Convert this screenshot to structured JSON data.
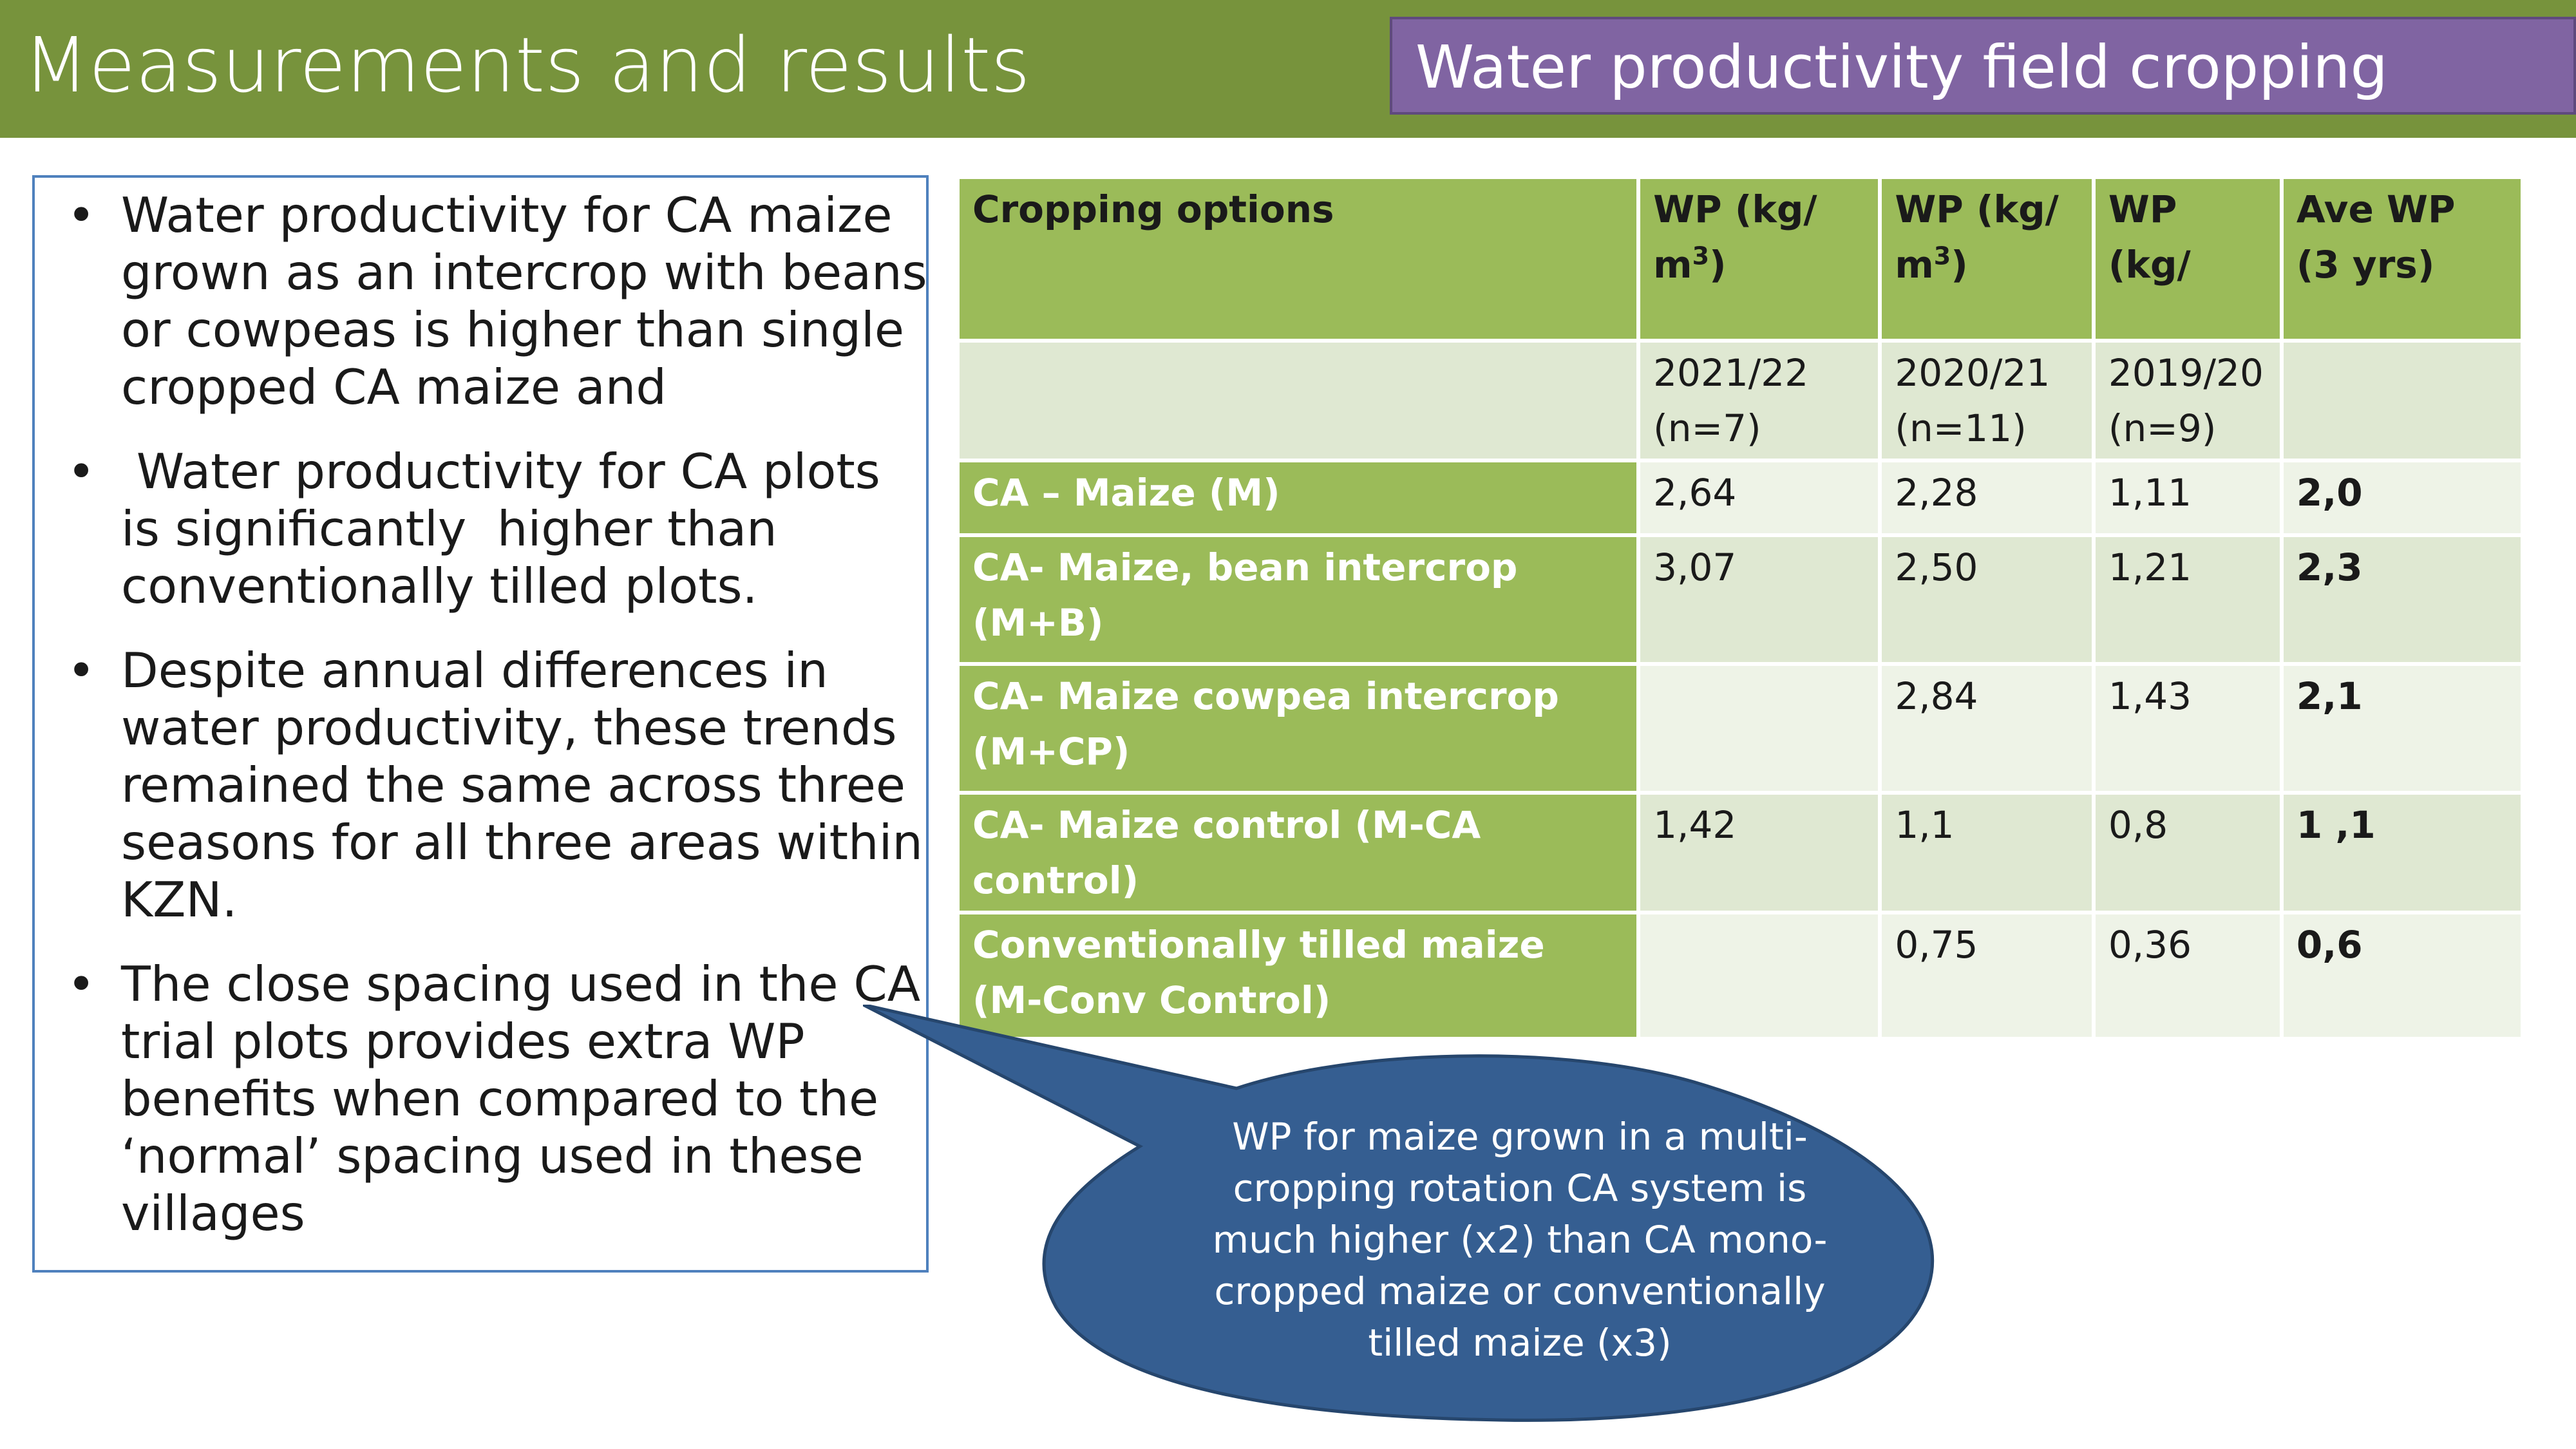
{
  "header": {
    "title": "Measurements and results",
    "subtitle": "Water productivity field cropping"
  },
  "bullets": [
    "Water productivity for CA maize grown as an intercrop with beans or cowpeas is higher than single cropped CA maize and",
    " Water productivity for CA plots is significantly  higher than conventionally tilled plots.",
    "Despite annual differences in water productivity, these trends remained the same across three seasons for all three areas within KZN.",
    "The close spacing used in the CA trial plots provides extra WP benefits when compared to the ‘normal’ spacing used in these villages"
  ],
  "table": {
    "headers": [
      "Cropping options",
      "WP (kg/",
      "WP (kg/",
      "WP (kg/",
      "Ave WP (3 yrs)"
    ],
    "header_unit": "m",
    "header_sup": "3",
    "header_close": ")",
    "seasons": [
      "",
      "2021/22 (n=7)",
      "2020/21 (n=11)",
      "2019/20 (n=9)",
      ""
    ],
    "rows": [
      {
        "label": "CA – Maize (M)",
        "v2122": "2,64",
        "v2021": "2,28",
        "v1920": "1,11",
        "avg": "2,0"
      },
      {
        "label": "CA- Maize, bean intercrop (M+B)",
        "v2122": "3,07",
        "v2021": "2,50",
        "v1920": "1,21",
        "avg": "2,3"
      },
      {
        "label": "CA- Maize cowpea intercrop (M+CP)",
        "v2122": "",
        "v2021": "2,84",
        "v1920": "1,43",
        "avg": "2,1"
      },
      {
        "label": "CA- Maize control (M-CA control)",
        "v2122": "1,42",
        "v2021": "1,1",
        "v1920": "0,8",
        "avg": "1 ,1"
      },
      {
        "label": "Conventionally tilled maize (M-Conv Control)",
        "v2122": "",
        "v2021": "0,75",
        "v1920": "0,36",
        "avg": "0,6"
      }
    ]
  },
  "callout": {
    "text": "WP for maize grown in a multi-cropping rotation CA system is much higher (x2)  than CA mono-cropped maize or conventionally tilled maize (x3)"
  },
  "colors": {
    "header_green": "#77933c",
    "subtitle_purple": "#8064a2",
    "table_green": "#9bbb59",
    "callout_blue": "#355e91"
  }
}
